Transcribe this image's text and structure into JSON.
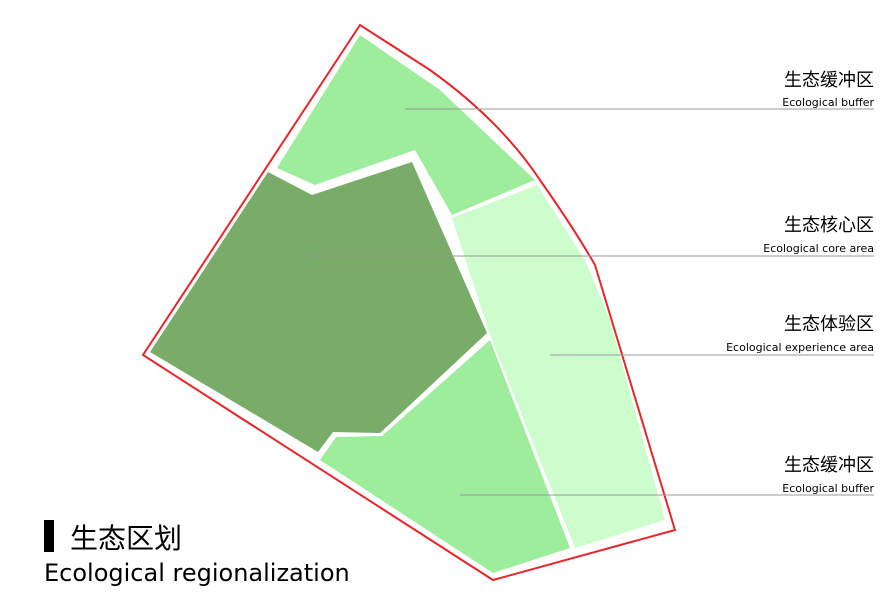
{
  "title": {
    "zh": "生态区划",
    "en": "Ecological regionalization"
  },
  "zones": [
    {
      "zh": "生态缓冲区",
      "en": "Ecological buffer"
    },
    {
      "zh": "生态核心区",
      "en": "Ecological core area"
    },
    {
      "zh": "生态体验区",
      "en": "Ecological experience area"
    },
    {
      "zh": "生态缓冲区",
      "en": "Ecological buffer"
    }
  ]
}
